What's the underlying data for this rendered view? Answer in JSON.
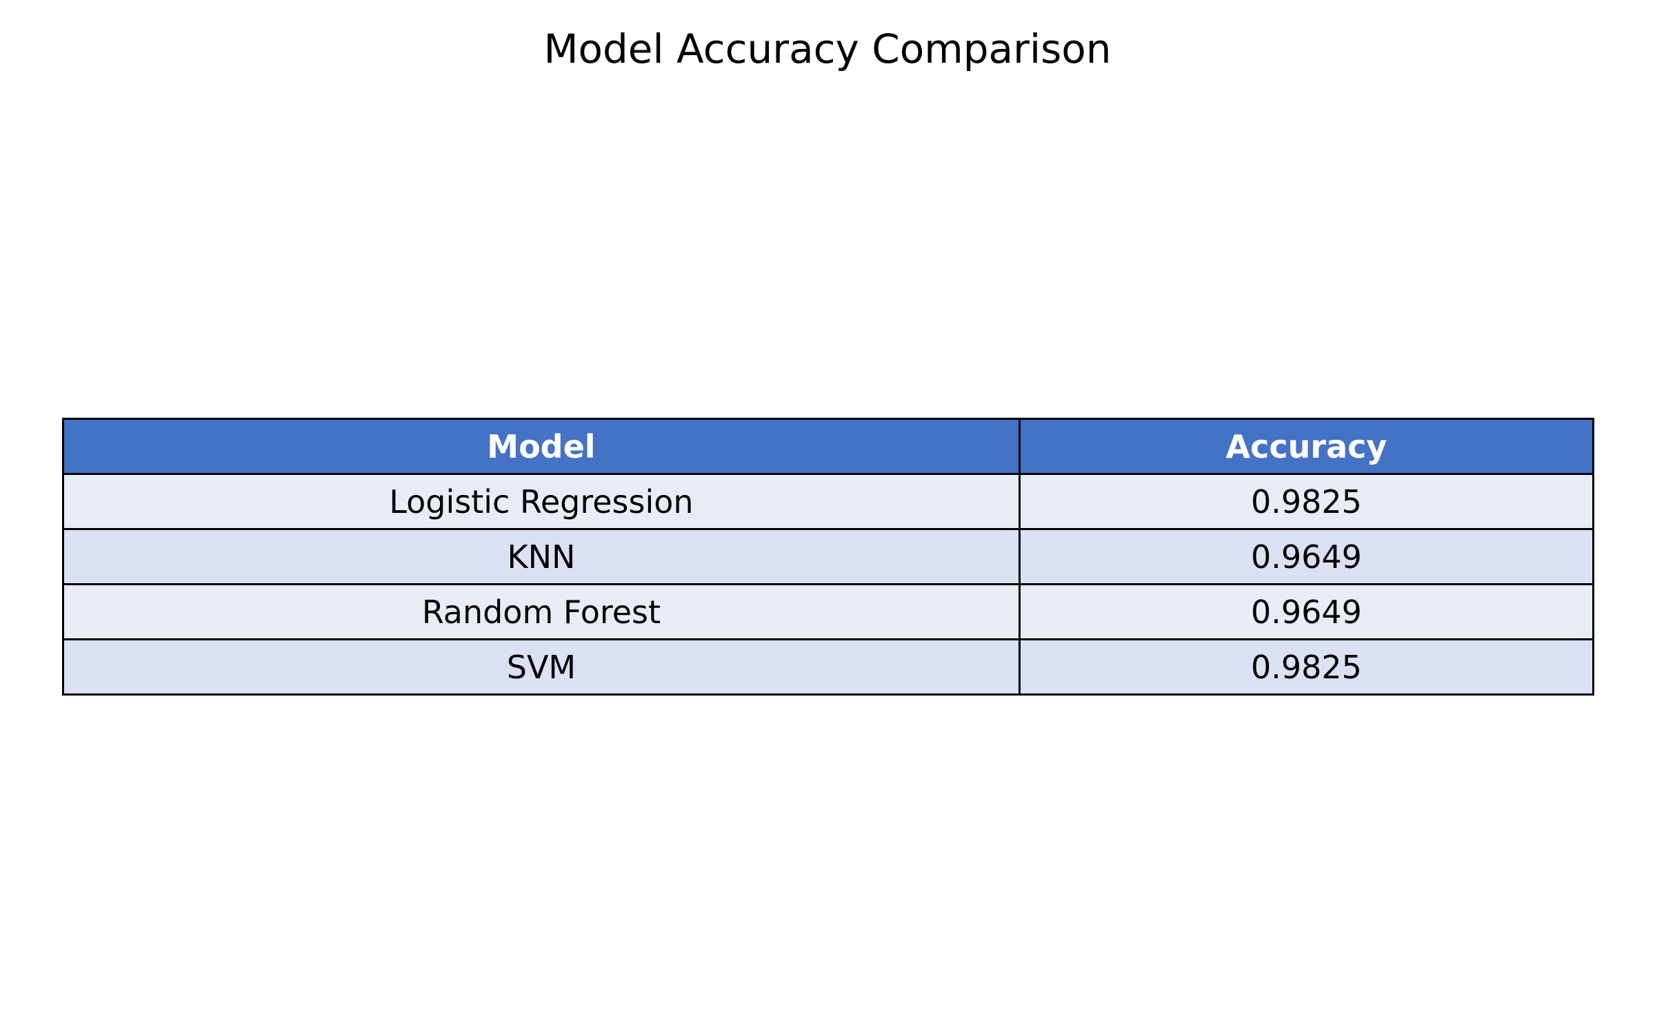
{
  "chart_data": {
    "type": "table",
    "title": "Model Accuracy Comparison",
    "columns": [
      "Model",
      "Accuracy"
    ],
    "rows": [
      [
        "Logistic Regression",
        "0.9825"
      ],
      [
        "KNN",
        "0.9649"
      ],
      [
        "Random Forest",
        "0.9649"
      ],
      [
        "SVM",
        "0.9825"
      ]
    ],
    "colors": {
      "header_bg": "#4472C4",
      "header_text": "#FFFFFF",
      "row_odd_bg": "#E8EDF5",
      "row_even_bg": "#DAE1F3",
      "border": "#000000"
    }
  }
}
